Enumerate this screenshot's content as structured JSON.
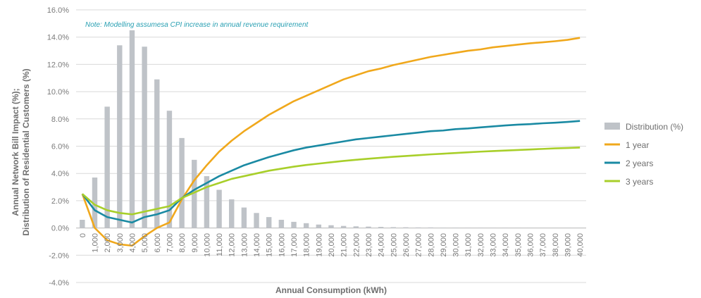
{
  "chart_data": {
    "type": "bar+line",
    "note": "Note: Modelling assumesa CPI increase in annual revenue requirement",
    "xlabel": "Annual Consumption  (kWh)",
    "ylabel_line1": "Annual Network Bill Impact (%);",
    "ylabel_line2": "Distribution  of Residential Customers  (%)",
    "ylim": [
      -4,
      16
    ],
    "y_ticks": [
      "-4.0%",
      "-2.0%",
      "0.0%",
      "2.0%",
      "4.0%",
      "6.0%",
      "8.0%",
      "10.0%",
      "12.0%",
      "14.0%",
      "16.0%"
    ],
    "categories": [
      "0",
      "1,000",
      "2,000",
      "3,000",
      "4,000",
      "5,000",
      "6,000",
      "7,000",
      "8,000",
      "9,000",
      "10,000",
      "11,000",
      "12,000",
      "13,000",
      "14,000",
      "15,000",
      "16,000",
      "17,000",
      "18,000",
      "19,000",
      "20,000",
      "21,000",
      "22,000",
      "23,000",
      "24,000",
      "25,000",
      "26,000",
      "27,000",
      "28,000",
      "29,000",
      "30,000",
      "31,000",
      "32,000",
      "33,000",
      "34,000",
      "35,000",
      "36,000",
      "37,000",
      "38,000",
      "39,000",
      "40,000"
    ],
    "bars": {
      "name": "Distribution (%)",
      "color": "#bfc3c8",
      "values": [
        0.6,
        3.7,
        8.9,
        13.4,
        14.5,
        13.3,
        10.9,
        8.6,
        6.6,
        5.0,
        3.8,
        2.8,
        2.1,
        1.5,
        1.1,
        0.8,
        0.6,
        0.45,
        0.35,
        0.25,
        0.2,
        0.15,
        0.12,
        0.1,
        0.08,
        0.06,
        0.05,
        0.04,
        0.04,
        0.03,
        0.03,
        0.02,
        0.02,
        0.02,
        0.02,
        0.01,
        0.01,
        0.01,
        0.01,
        0.01,
        0.01
      ]
    },
    "series": [
      {
        "name": "1 year",
        "color": "#f0a81c",
        "values": [
          2.5,
          0.0,
          -0.9,
          -1.2,
          -1.3,
          -0.6,
          0.0,
          0.4,
          2.1,
          3.5,
          4.6,
          5.6,
          6.4,
          7.1,
          7.7,
          8.3,
          8.8,
          9.3,
          9.7,
          10.1,
          10.5,
          10.9,
          11.2,
          11.5,
          11.7,
          11.95,
          12.15,
          12.35,
          12.55,
          12.7,
          12.85,
          13.0,
          13.1,
          13.25,
          13.35,
          13.45,
          13.55,
          13.62,
          13.7,
          13.8,
          13.95
        ]
      },
      {
        "name": "2 years",
        "color": "#1a8aa3",
        "values": [
          2.5,
          1.3,
          0.8,
          0.6,
          0.4,
          0.8,
          1.0,
          1.3,
          2.2,
          2.8,
          3.3,
          3.8,
          4.2,
          4.6,
          4.9,
          5.2,
          5.45,
          5.7,
          5.9,
          6.05,
          6.2,
          6.35,
          6.5,
          6.6,
          6.7,
          6.8,
          6.9,
          7.0,
          7.1,
          7.15,
          7.25,
          7.3,
          7.38,
          7.45,
          7.52,
          7.58,
          7.62,
          7.68,
          7.72,
          7.78,
          7.85
        ]
      },
      {
        "name": "3 years",
        "color": "#a8cf2a",
        "values": [
          2.5,
          1.7,
          1.3,
          1.1,
          1.0,
          1.2,
          1.4,
          1.6,
          2.2,
          2.6,
          3.0,
          3.3,
          3.6,
          3.8,
          4.0,
          4.2,
          4.35,
          4.5,
          4.62,
          4.72,
          4.82,
          4.92,
          5.0,
          5.08,
          5.15,
          5.22,
          5.28,
          5.34,
          5.4,
          5.45,
          5.5,
          5.55,
          5.6,
          5.64,
          5.68,
          5.72,
          5.76,
          5.8,
          5.84,
          5.87,
          5.9
        ]
      }
    ],
    "grid": true,
    "legend_position": "right"
  }
}
